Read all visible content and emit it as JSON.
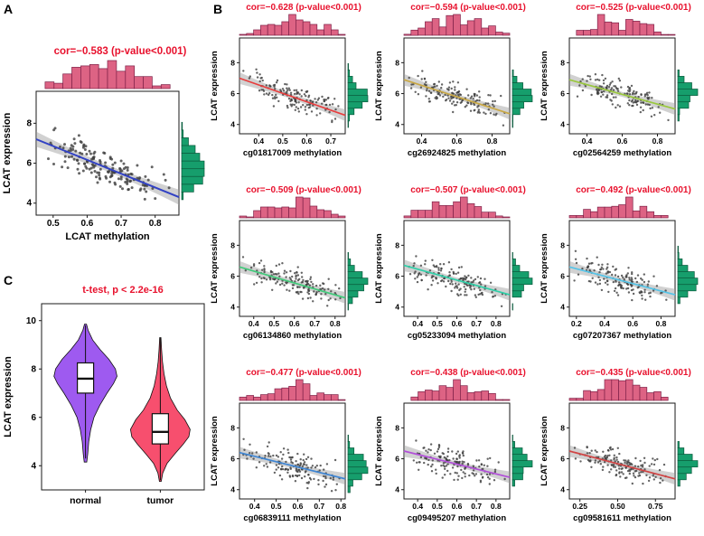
{
  "panels": {
    "A": "A",
    "B": "B",
    "C": "C"
  },
  "colors": {
    "title": "#e8112d",
    "histTopFill": "#dd6384",
    "histTopStroke": "#7e2148",
    "histRightFill": "#169e6c",
    "histRightStroke": "#0a5a3c",
    "point": "#3d3d3d",
    "band": "#9a9a9a"
  },
  "chart_data": [
    {
      "type": "scatter",
      "id": "A",
      "size": "large",
      "seed": 101,
      "n": 160,
      "title": "cor=−0.583 (p-value<0.001)",
      "cor": -0.583,
      "p": "<0.001",
      "xlabel": "LCAT methylation",
      "ylabel": "LCAT expression",
      "xlim": [
        0.45,
        0.87
      ],
      "ylim": [
        3.4,
        9.6
      ],
      "xticks": [
        "0.5",
        "0.6",
        "0.7",
        "0.8"
      ],
      "yticks": [
        "4",
        "6",
        "8"
      ],
      "line": [
        7.2,
        4.3
      ],
      "line_color": "#3141c4",
      "noise": 0.85
    },
    {
      "type": "scatter",
      "id": "cg01817009",
      "size": "small",
      "seed": 7,
      "n": 150,
      "title": "cor=−0.628 (p-value<0.001)",
      "cor": -0.628,
      "p": "<0.001",
      "xlabel": "cg01817009 methylation",
      "ylabel": "LCAT expression",
      "xlim": [
        0.32,
        0.76
      ],
      "ylim": [
        3.4,
        9.6
      ],
      "xticks": [
        "0.4",
        "0.5",
        "0.6",
        "0.7"
      ],
      "yticks": [
        "4",
        "6",
        "8"
      ],
      "line": [
        7.0,
        4.6
      ],
      "line_color": "#e83e3e",
      "noise": 0.8
    },
    {
      "type": "scatter",
      "id": "cg26924825",
      "size": "small",
      "seed": 13,
      "n": 150,
      "title": "cor=−0.594 (p-value<0.001)",
      "cor": -0.594,
      "p": "<0.001",
      "xlabel": "cg26924825 methylation",
      "ylabel": "LCAT expression",
      "xlim": [
        0.3,
        0.9
      ],
      "ylim": [
        3.4,
        9.6
      ],
      "xticks": [
        "0.4",
        "0.6",
        "0.8"
      ],
      "yticks": [
        "4",
        "6",
        "8"
      ],
      "line": [
        6.9,
        4.7
      ],
      "line_color": "#c9a845",
      "noise": 0.8
    },
    {
      "type": "scatter",
      "id": "cg02564259",
      "size": "small",
      "seed": 21,
      "n": 150,
      "title": "cor=−0.525 (p-value<0.001)",
      "cor": -0.525,
      "p": "<0.001",
      "xlabel": "cg02564259 methylation",
      "ylabel": "LCAT expression",
      "xlim": [
        0.3,
        0.9
      ],
      "ylim": [
        3.4,
        9.6
      ],
      "xticks": [
        "0.4",
        "0.6",
        "0.8"
      ],
      "yticks": [
        "4",
        "6",
        "8"
      ],
      "line": [
        6.9,
        5.0
      ],
      "line_color": "#9ac83e",
      "noise": 0.85
    },
    {
      "type": "scatter",
      "id": "cg06134860",
      "size": "small",
      "seed": 33,
      "n": 150,
      "title": "cor=−0.509 (p-value<0.001)",
      "cor": -0.509,
      "p": "<0.001",
      "xlabel": "cg06134860 methylation",
      "ylabel": "LCAT expression",
      "xlim": [
        0.33,
        0.85
      ],
      "ylim": [
        3.4,
        9.6
      ],
      "xticks": [
        "0.4",
        "0.5",
        "0.6",
        "0.7",
        "0.8"
      ],
      "yticks": [
        "4",
        "6",
        "8"
      ],
      "line": [
        6.6,
        4.6
      ],
      "line_color": "#41c97a",
      "noise": 0.85
    },
    {
      "type": "scatter",
      "id": "cg05233094",
      "size": "small",
      "seed": 47,
      "n": 150,
      "title": "cor=−0.507 (p-value<0.001)",
      "cor": -0.507,
      "p": "<0.001",
      "xlabel": "cg05233094 methylation",
      "ylabel": "LCAT expression",
      "xlim": [
        0.33,
        0.87
      ],
      "ylim": [
        3.4,
        9.6
      ],
      "xticks": [
        "0.4",
        "0.5",
        "0.6",
        "0.7",
        "0.8"
      ],
      "yticks": [
        "4",
        "6",
        "8"
      ],
      "line": [
        6.7,
        4.8
      ],
      "line_color": "#2ecfa8",
      "noise": 0.85
    },
    {
      "type": "scatter",
      "id": "cg07207367",
      "size": "small",
      "seed": 55,
      "n": 150,
      "title": "cor=−0.492 (p-value<0.001)",
      "cor": -0.492,
      "p": "<0.001",
      "xlabel": "cg07207367 methylation",
      "ylabel": "LCAT expression",
      "xlim": [
        0.15,
        0.9
      ],
      "ylim": [
        3.4,
        9.6
      ],
      "xticks": [
        "0.2",
        "0.4",
        "0.6",
        "0.8"
      ],
      "yticks": [
        "4",
        "6",
        "8"
      ],
      "line": [
        6.6,
        4.8
      ],
      "line_color": "#55c4e8",
      "noise": 0.85
    },
    {
      "type": "scatter",
      "id": "cg06839111",
      "size": "small",
      "seed": 63,
      "n": 150,
      "title": "cor=−0.477 (p-value<0.001)",
      "cor": -0.477,
      "p": "<0.001",
      "xlabel": "cg06839111 methylation",
      "ylabel": "LCAT expression",
      "xlim": [
        0.33,
        0.82
      ],
      "ylim": [
        3.4,
        9.6
      ],
      "xticks": [
        "0.4",
        "0.5",
        "0.6",
        "0.7",
        "0.8"
      ],
      "yticks": [
        "4",
        "6",
        "8"
      ],
      "line": [
        6.4,
        4.7
      ],
      "line_color": "#3f86d4",
      "noise": 0.9
    },
    {
      "type": "scatter",
      "id": "cg09495207",
      "size": "small",
      "seed": 77,
      "n": 150,
      "title": "cor=−0.438 (p-value<0.001)",
      "cor": -0.438,
      "p": "<0.001",
      "xlabel": "cg09495207 methylation",
      "ylabel": "LCAT expression",
      "xlim": [
        0.33,
        0.87
      ],
      "ylim": [
        3.4,
        9.6
      ],
      "xticks": [
        "0.4",
        "0.5",
        "0.6",
        "0.7",
        "0.8"
      ],
      "yticks": [
        "4",
        "6",
        "8"
      ],
      "line": [
        6.5,
        4.8
      ],
      "line_color": "#b14fd8",
      "noise": 0.9
    },
    {
      "type": "scatter",
      "id": "cg09581611",
      "size": "small",
      "seed": 91,
      "n": 150,
      "title": "cor=−0.435 (p-value<0.001)",
      "cor": -0.435,
      "p": "<0.001",
      "xlabel": "cg09581611 methylation",
      "ylabel": "LCAT expression",
      "xlim": [
        0.18,
        0.88
      ],
      "ylim": [
        3.4,
        9.6
      ],
      "xticks": [
        "0.25",
        "0.50",
        "0.75"
      ],
      "yticks": [
        "4",
        "6",
        "8"
      ],
      "line": [
        6.5,
        4.7
      ],
      "line_color": "#d14444",
      "noise": 0.9
    },
    {
      "type": "violin",
      "id": "C",
      "title": "t-test, p < 2.2e-16",
      "ylabel": "LCAT expression",
      "ylim": [
        3.0,
        10.7
      ],
      "yticks": [
        "4",
        "6",
        "8",
        "10"
      ],
      "categories": [
        "normal",
        "tumor"
      ],
      "groups": [
        {
          "name": "normal",
          "color": "#9e5af0",
          "center": 0.27,
          "max_half": 36,
          "profile": [
            [
              4.15,
              0.04
            ],
            [
              4.5,
              0.07
            ],
            [
              5.0,
              0.1
            ],
            [
              5.5,
              0.16
            ],
            [
              6.0,
              0.26
            ],
            [
              6.5,
              0.44
            ],
            [
              7.0,
              0.66
            ],
            [
              7.4,
              0.86
            ],
            [
              7.7,
              0.97
            ],
            [
              8.0,
              0.92
            ],
            [
              8.4,
              0.72
            ],
            [
              8.8,
              0.45
            ],
            [
              9.2,
              0.22
            ],
            [
              9.6,
              0.08
            ],
            [
              9.85,
              0.03
            ]
          ],
          "box": {
            "q1": 7.0,
            "median": 7.6,
            "q3": 8.25,
            "lo": 4.3,
            "hi": 9.8
          }
        },
        {
          "name": "tumor",
          "color": "#f74f6e",
          "center": 0.73,
          "max_half": 34,
          "profile": [
            [
              3.35,
              0.03
            ],
            [
              3.7,
              0.08
            ],
            [
              4.1,
              0.22
            ],
            [
              4.5,
              0.48
            ],
            [
              4.9,
              0.75
            ],
            [
              5.2,
              0.93
            ],
            [
              5.5,
              0.97
            ],
            [
              5.9,
              0.8
            ],
            [
              6.3,
              0.55
            ],
            [
              6.8,
              0.33
            ],
            [
              7.3,
              0.2
            ],
            [
              7.8,
              0.12
            ],
            [
              8.3,
              0.07
            ],
            [
              8.8,
              0.04
            ],
            [
              9.3,
              0.02
            ]
          ],
          "box": {
            "q1": 4.9,
            "median": 5.4,
            "q3": 6.15,
            "lo": 3.4,
            "hi": 9.3
          }
        }
      ]
    }
  ]
}
